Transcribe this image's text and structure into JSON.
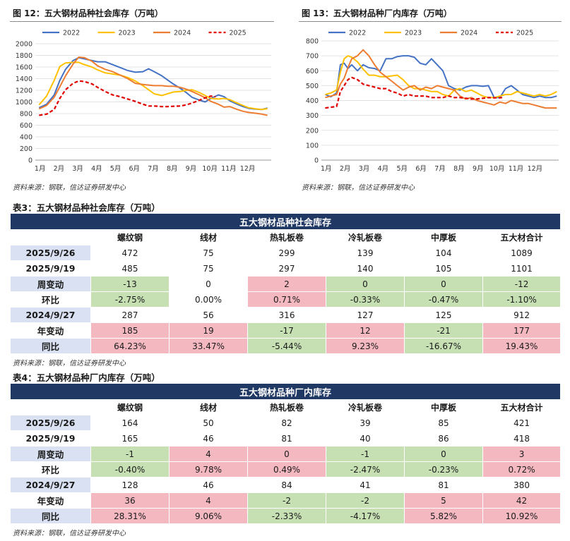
{
  "figures": [
    {
      "title": "图 12：五大钢材品种社会库存（万吨）",
      "source": "资料来源：钢联，信达证券研发中心"
    },
    {
      "title": "图 13：五大钢材品种厂内库存（万吨）",
      "source": "资料来源：钢联，信达证券研发中心"
    }
  ],
  "chart_data": [
    {
      "type": "line",
      "title": "图 12：五大钢材品种社会库存（万吨）",
      "ylim": [
        0,
        2000
      ],
      "yticks": [
        0,
        200,
        400,
        600,
        800,
        1000,
        1200,
        1400,
        1600,
        1800,
        2000
      ],
      "xticks": [
        "1月",
        "2月",
        "3月",
        "4月",
        "5月",
        "6月",
        "7月",
        "8月",
        "9月",
        "10月",
        "11月",
        "12月"
      ],
      "xlim": [
        0,
        12.5
      ],
      "series": [
        {
          "name": "2022",
          "color": "#4472c4",
          "dashed": false,
          "x": [
            0.2,
            0.6,
            1.0,
            1.3,
            1.6,
            2.0,
            2.3,
            2.6,
            3.0,
            3.3,
            3.7,
            4.1,
            4.5,
            4.9,
            5.3,
            5.7,
            6.0,
            6.3,
            6.7,
            7.0,
            7.3,
            7.7,
            8.0,
            8.3,
            8.7,
            9.0,
            9.3,
            9.7,
            10.0,
            10.3,
            10.7,
            11.0,
            11.3,
            11.7,
            12.0,
            12.3
          ],
          "values": [
            900,
            960,
            1120,
            1370,
            1560,
            1710,
            1760,
            1740,
            1710,
            1690,
            1690,
            1640,
            1590,
            1540,
            1510,
            1520,
            1570,
            1520,
            1450,
            1380,
            1310,
            1230,
            1160,
            1080,
            1030,
            1000,
            1060,
            1120,
            1090,
            1020,
            960,
            920,
            890,
            875,
            870,
            895
          ]
        },
        {
          "name": "2023",
          "color": "#ffc000",
          "dashed": false,
          "x": [
            0.2,
            0.6,
            1.0,
            1.3,
            1.6,
            2.0,
            2.3,
            2.6,
            3.0,
            3.3,
            3.7,
            4.1,
            4.5,
            4.9,
            5.3,
            5.7,
            6.0,
            6.3,
            6.7,
            7.0,
            7.3,
            7.7,
            8.0,
            8.3,
            8.7,
            9.0,
            9.3,
            9.7,
            10.0,
            10.3,
            10.7,
            11.0,
            11.3,
            11.7,
            12.0,
            12.3
          ],
          "values": [
            950,
            1100,
            1370,
            1610,
            1670,
            1680,
            1680,
            1640,
            1600,
            1550,
            1500,
            1480,
            1460,
            1420,
            1360,
            1280,
            1210,
            1140,
            1110,
            1140,
            1170,
            1180,
            1200,
            1210,
            1160,
            1110,
            1060,
            1050,
            1060,
            1040,
            980,
            940,
            900,
            880,
            870,
            885
          ]
        },
        {
          "name": "2024",
          "color": "#ed7d31",
          "dashed": false,
          "x": [
            0.2,
            0.6,
            1.0,
            1.3,
            1.6,
            2.0,
            2.3,
            2.6,
            3.0,
            3.3,
            3.7,
            4.1,
            4.5,
            4.9,
            5.3,
            5.7,
            6.0,
            6.3,
            6.7,
            7.0,
            7.3,
            7.7,
            8.0,
            8.3,
            8.7,
            9.0,
            9.3,
            9.7,
            10.0,
            10.3,
            10.7,
            11.0,
            11.3,
            11.7,
            12.0,
            12.3
          ],
          "values": [
            880,
            940,
            1080,
            1260,
            1450,
            1650,
            1770,
            1760,
            1700,
            1620,
            1560,
            1520,
            1460,
            1400,
            1320,
            1300,
            1290,
            1280,
            1280,
            1270,
            1270,
            1250,
            1220,
            1180,
            1120,
            1070,
            1010,
            960,
            910,
            920,
            870,
            840,
            820,
            805,
            790,
            770
          ]
        },
        {
          "name": "2025",
          "color": "#e00000",
          "dashed": true,
          "x": [
            0.2,
            0.6,
            1.0,
            1.3,
            1.6,
            2.0,
            2.3,
            2.6,
            3.0,
            3.3,
            3.7,
            4.1,
            4.5,
            4.9,
            5.3,
            5.7,
            6.0,
            6.3,
            6.7,
            7.0,
            7.3,
            7.7,
            8.0,
            8.3,
            8.7,
            9.0,
            9.3,
            9.55
          ],
          "values": [
            770,
            790,
            870,
            1060,
            1210,
            1320,
            1360,
            1350,
            1310,
            1250,
            1180,
            1120,
            1090,
            1050,
            1010,
            960,
            930,
            930,
            920,
            920,
            925,
            930,
            950,
            980,
            1030,
            1070,
            1101,
            1089
          ]
        }
      ]
    },
    {
      "type": "line",
      "title": "图 13：五大钢材品种厂内库存（万吨）",
      "ylim": [
        0,
        800
      ],
      "yticks": [
        0,
        100,
        200,
        300,
        400,
        500,
        600,
        700,
        800
      ],
      "xticks": [
        "1月",
        "2月",
        "3月",
        "4月",
        "5月",
        "6月",
        "7月",
        "8月",
        "9月",
        "10月",
        "11月",
        "12月"
      ],
      "xlim": [
        0,
        12.5
      ],
      "series": [
        {
          "name": "2022",
          "color": "#4472c4",
          "dashed": false,
          "x": [
            0.2,
            0.5,
            0.8,
            1.0,
            1.2,
            1.4,
            1.6,
            1.9,
            2.2,
            2.5,
            2.8,
            3.1,
            3.4,
            3.7,
            4.0,
            4.3,
            4.6,
            4.9,
            5.2,
            5.5,
            5.8,
            6.1,
            6.4,
            6.7,
            7.0,
            7.3,
            7.6,
            7.9,
            8.2,
            8.5,
            8.8,
            9.1,
            9.4,
            9.7,
            10.0,
            10.3,
            10.6,
            10.9,
            11.2,
            11.5,
            11.8,
            12.1,
            12.4
          ],
          "values": [
            440,
            425,
            450,
            640,
            650,
            615,
            640,
            600,
            640,
            620,
            615,
            600,
            680,
            680,
            695,
            700,
            700,
            690,
            650,
            640,
            680,
            640,
            600,
            500,
            480,
            470,
            490,
            500,
            500,
            495,
            500,
            420,
            420,
            480,
            500,
            470,
            440,
            430,
            420,
            430,
            420,
            420,
            430
          ]
        },
        {
          "name": "2023",
          "color": "#ffc000",
          "dashed": false,
          "x": [
            0.2,
            0.5,
            0.8,
            1.0,
            1.2,
            1.4,
            1.6,
            1.9,
            2.2,
            2.5,
            2.8,
            3.1,
            3.4,
            3.7,
            4.0,
            4.3,
            4.6,
            4.9,
            5.2,
            5.5,
            5.8,
            6.1,
            6.4,
            6.7,
            7.0,
            7.3,
            7.6,
            7.9,
            8.2,
            8.5,
            8.8,
            9.1,
            9.4,
            9.7,
            10.0,
            10.3,
            10.6,
            10.9,
            11.2,
            11.5,
            11.8,
            12.1,
            12.4
          ],
          "values": [
            440,
            450,
            470,
            590,
            680,
            700,
            690,
            660,
            610,
            570,
            570,
            560,
            560,
            565,
            570,
            540,
            500,
            480,
            480,
            470,
            460,
            460,
            440,
            430,
            470,
            480,
            460,
            470,
            450,
            430,
            420,
            420,
            430,
            440,
            440,
            460,
            450,
            440,
            430,
            440,
            430,
            440,
            460
          ]
        },
        {
          "name": "2024",
          "color": "#ed7d31",
          "dashed": false,
          "x": [
            0.2,
            0.5,
            0.8,
            1.0,
            1.2,
            1.4,
            1.6,
            1.9,
            2.2,
            2.5,
            2.8,
            3.1,
            3.4,
            3.7,
            4.0,
            4.3,
            4.6,
            4.9,
            5.2,
            5.5,
            5.8,
            6.1,
            6.4,
            6.7,
            7.0,
            7.3,
            7.6,
            7.9,
            8.2,
            8.5,
            8.8,
            9.1,
            9.4,
            9.7,
            10.0,
            10.3,
            10.6,
            10.9,
            11.2,
            11.5,
            11.8,
            12.1,
            12.4
          ],
          "values": [
            420,
            430,
            440,
            510,
            550,
            620,
            680,
            700,
            740,
            700,
            640,
            590,
            560,
            530,
            500,
            470,
            490,
            500,
            470,
            490,
            480,
            500,
            490,
            480,
            470,
            430,
            410,
            420,
            400,
            390,
            380,
            370,
            390,
            380,
            400,
            390,
            380,
            380,
            370,
            360,
            350,
            350,
            350
          ]
        },
        {
          "name": "2025",
          "color": "#e00000",
          "dashed": true,
          "x": [
            0.2,
            0.5,
            0.8,
            1.0,
            1.2,
            1.4,
            1.6,
            1.9,
            2.2,
            2.5,
            2.8,
            3.1,
            3.4,
            3.7,
            4.0,
            4.3,
            4.6,
            4.9,
            5.2,
            5.5,
            5.8,
            6.1,
            6.4,
            6.7,
            7.0,
            7.3,
            7.6,
            7.9,
            8.2,
            8.5,
            8.8,
            9.1,
            9.4,
            9.55
          ],
          "values": [
            350,
            355,
            360,
            460,
            500,
            540,
            555,
            540,
            510,
            500,
            490,
            480,
            480,
            460,
            450,
            430,
            440,
            430,
            430,
            430,
            420,
            420,
            420,
            430,
            420,
            420,
            415,
            410,
            410,
            415,
            420,
            418,
            418,
            421
          ]
        }
      ]
    }
  ],
  "tables": [
    {
      "title": "表3：五大钢材品种社会库存（万吨）",
      "caption": "五大钢材品种社会库存",
      "columns": [
        "",
        "螺纹钢",
        "线材",
        "热轧板卷",
        "冷轧板卷",
        "中厚板",
        "五大材合计"
      ],
      "rows": [
        {
          "label": "2025/9/26",
          "cells": [
            "472",
            "75",
            "299",
            "139",
            "104",
            "1089"
          ]
        },
        {
          "label": "2025/9/19",
          "cells": [
            "485",
            "75",
            "297",
            "140",
            "105",
            "1101"
          ]
        },
        {
          "label": "周变动",
          "cells": [
            "-13",
            "0",
            "2",
            "0",
            "0",
            "-12"
          ]
        },
        {
          "label": "环比",
          "cells": [
            "-2.75%",
            "0.00%",
            "0.71%",
            "-0.33%",
            "-0.47%",
            "-1.10%"
          ]
        },
        {
          "label": "2024/9/27",
          "cells": [
            "287",
            "56",
            "316",
            "127",
            "125",
            "912"
          ]
        },
        {
          "label": "年变动",
          "cells": [
            "185",
            "19",
            "-17",
            "12",
            "-21",
            "177"
          ]
        },
        {
          "label": "同比",
          "cells": [
            "64.23%",
            "33.47%",
            "-5.44%",
            "9.23%",
            "-16.67%",
            "19.43%"
          ]
        }
      ],
      "source": "资料来源：钢联，信达证券研发中心"
    },
    {
      "title": "表4：五大钢材品种厂内库存（万吨）",
      "caption": "五大钢材品种厂内库存",
      "columns": [
        "",
        "螺纹钢",
        "线材",
        "热轧板卷",
        "冷轧板卷",
        "中厚板",
        "五大材合计"
      ],
      "rows": [
        {
          "label": "2025/9/26",
          "cells": [
            "164",
            "50",
            "82",
            "39",
            "85",
            "421"
          ]
        },
        {
          "label": "2025/9/19",
          "cells": [
            "165",
            "46",
            "81",
            "40",
            "86",
            "418"
          ]
        },
        {
          "label": "周变动",
          "cells": [
            "-1",
            "4",
            "0",
            "-1",
            "0",
            "3"
          ]
        },
        {
          "label": "环比",
          "cells": [
            "-0.40%",
            "9.78%",
            "0.49%",
            "-2.47%",
            "-0.23%",
            "0.72%"
          ]
        },
        {
          "label": "2024/9/27",
          "cells": [
            "128",
            "46",
            "84",
            "41",
            "81",
            "380"
          ]
        },
        {
          "label": "年变动",
          "cells": [
            "36",
            "4",
            "-2",
            "-2",
            "5",
            "42"
          ]
        },
        {
          "label": "同比",
          "cells": [
            "28.31%",
            "9.06%",
            "-2.33%",
            "-4.17%",
            "5.82%",
            "10.92%"
          ]
        }
      ],
      "source": "资料来源：钢联，信达证券研发中心"
    }
  ],
  "colors": {
    "header_bg": "#1f3864",
    "label_bg": "#d9e1f2",
    "positive_bg": "#f4b8c1",
    "negative_bg": "#c6e0b4"
  }
}
